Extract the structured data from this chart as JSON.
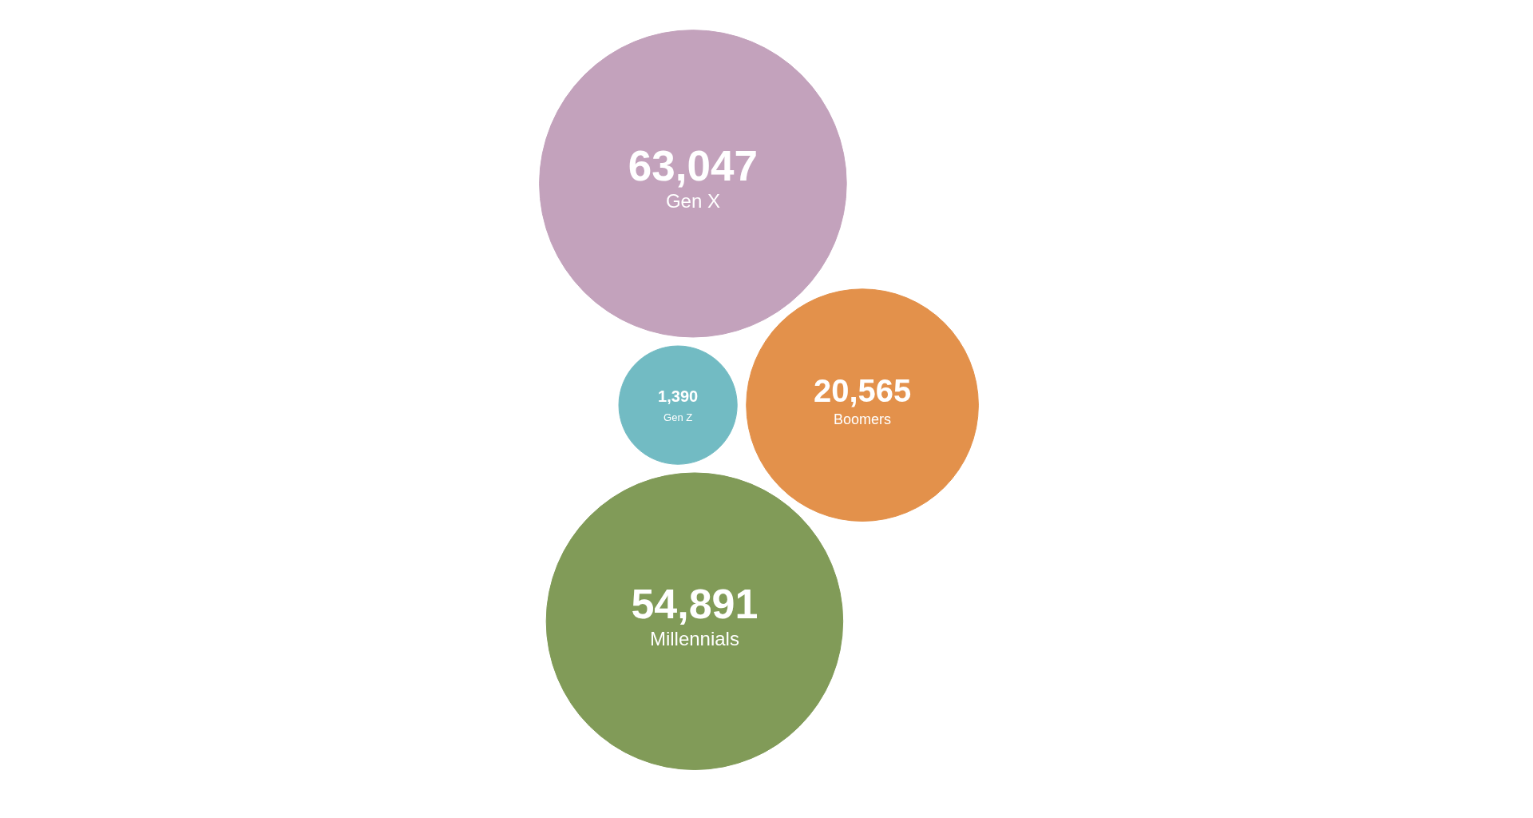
{
  "chart_data": {
    "type": "other",
    "categories": [
      "Gen Z",
      "Boomers",
      "Gen X",
      "Millennials"
    ],
    "values": [
      1390,
      20565,
      63047,
      54891
    ],
    "colors": [
      "#72bbc3",
      "#e3914b",
      "#c3a2bc",
      "#819b58"
    ],
    "value_labels": [
      "1,390",
      "20,565",
      "63,047",
      "54,891"
    ]
  }
}
